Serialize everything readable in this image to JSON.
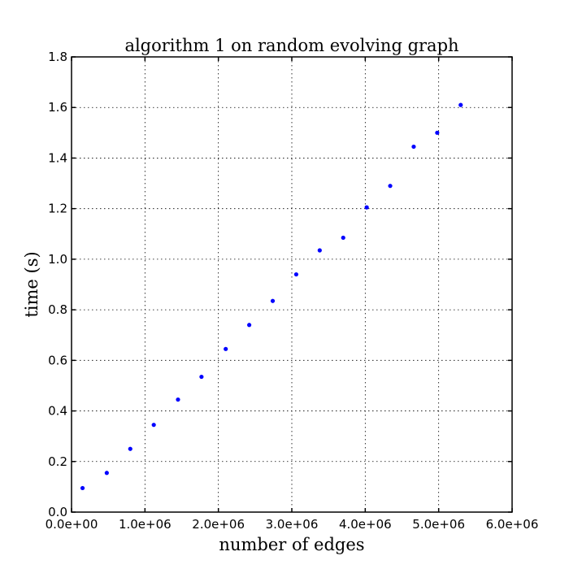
{
  "chart_data": {
    "type": "scatter",
    "title": "algorithm 1 on random evolving graph",
    "xlabel": "number of edges",
    "ylabel": "time (s)",
    "xlim": [
      0,
      6000000
    ],
    "ylim": [
      0,
      1.8
    ],
    "xticks": [
      0,
      1000000,
      2000000,
      3000000,
      4000000,
      5000000,
      6000000
    ],
    "xtick_labels": [
      "0.0e+00",
      "1.0e+06",
      "2.0e+06",
      "3.0e+06",
      "4.0e+06",
      "5.0e+06",
      "6.0e+06"
    ],
    "yticks": [
      0,
      0.2,
      0.4,
      0.6,
      0.8,
      1.0,
      1.2,
      1.4,
      1.6,
      1.8
    ],
    "ytick_labels": [
      "0.0",
      "0.2",
      "0.4",
      "0.6",
      "0.8",
      "1.0",
      "1.2",
      "1.4",
      "1.6",
      "1.8"
    ],
    "grid": true,
    "marker_color": "#0000ff",
    "series": [
      {
        "x": [
          150000,
          480000,
          800000,
          1120000,
          1450000,
          1770000,
          2100000,
          2420000,
          2740000,
          3060000,
          3380000,
          3700000,
          4020000,
          4340000,
          4660000,
          4980000,
          5300000
        ],
        "y": [
          0.095,
          0.155,
          0.25,
          0.345,
          0.445,
          0.535,
          0.645,
          0.74,
          0.835,
          0.94,
          1.035,
          1.085,
          1.205,
          1.29,
          1.445,
          1.5,
          1.61
        ]
      }
    ]
  }
}
